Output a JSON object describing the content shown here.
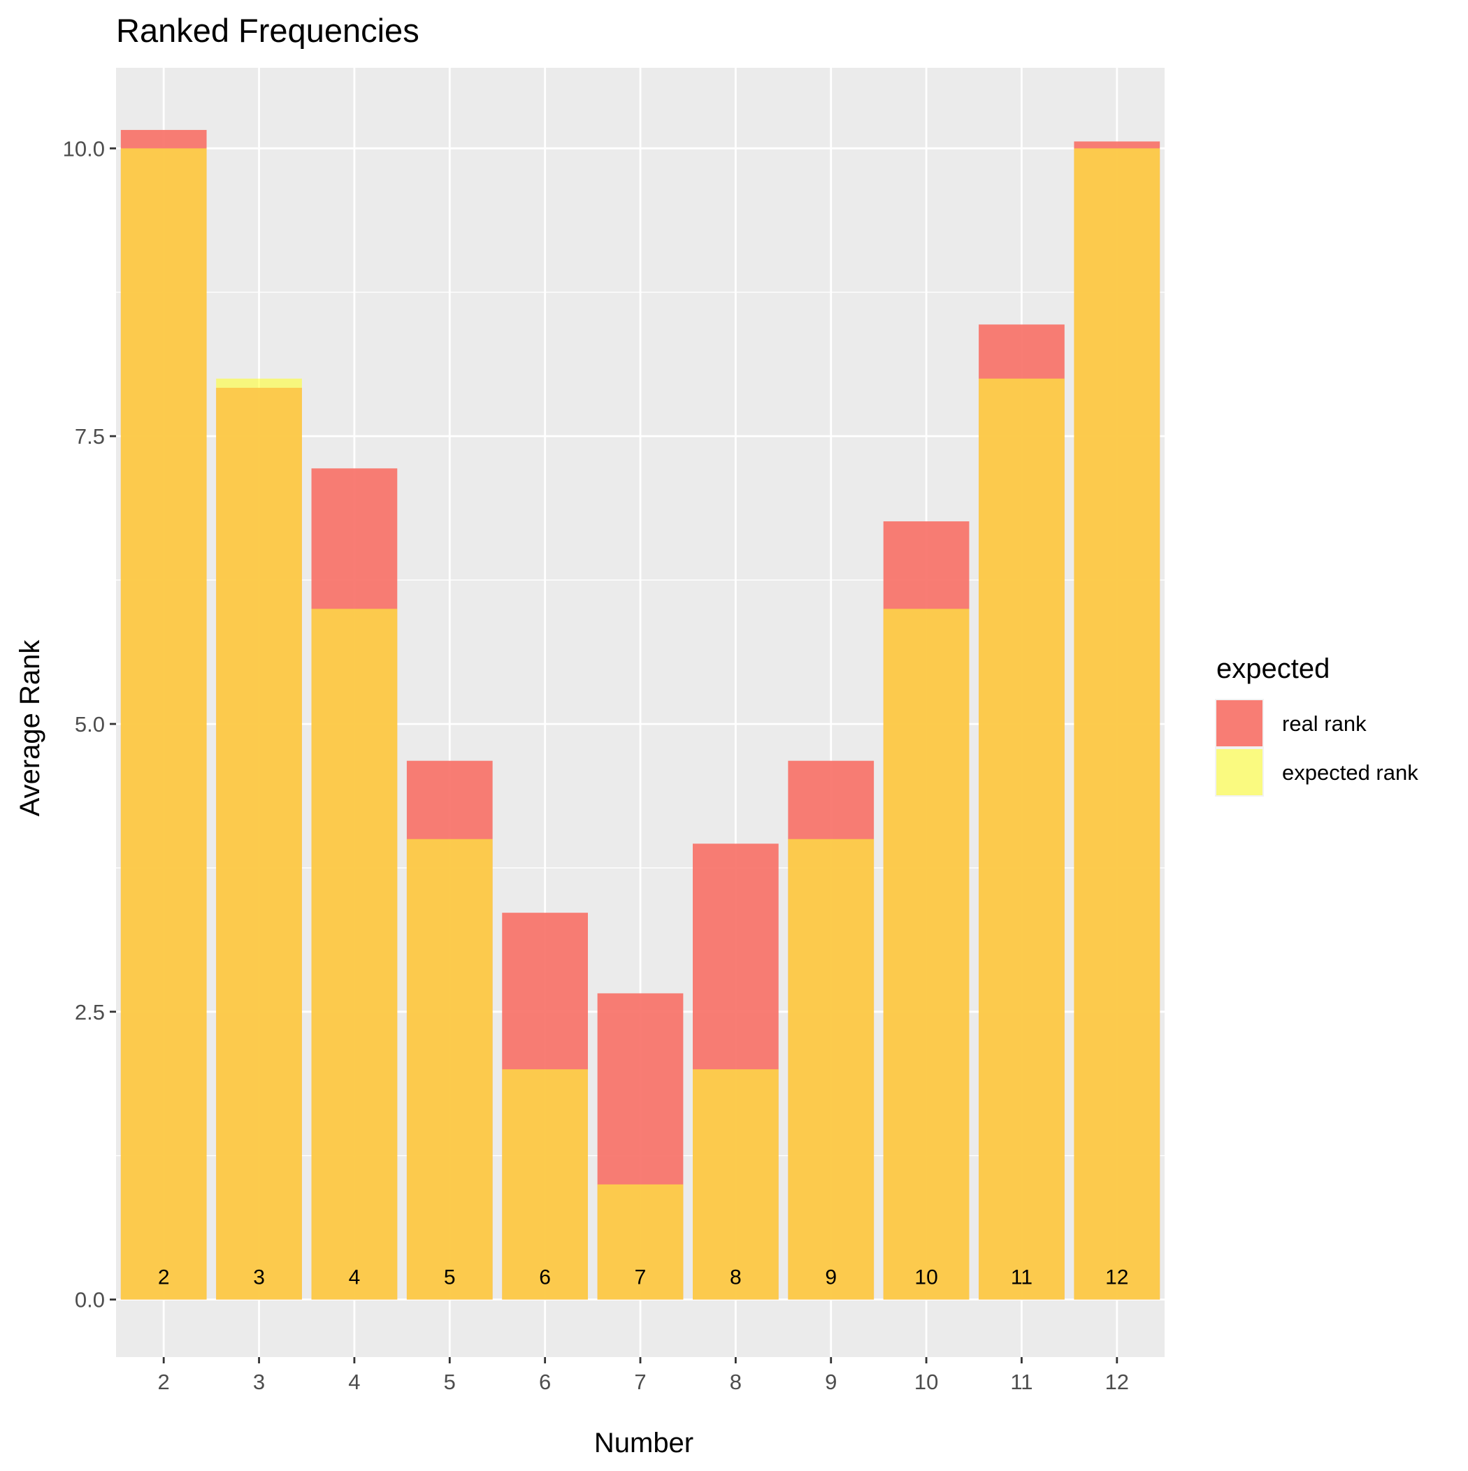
{
  "chart_data": {
    "type": "bar",
    "title": "Ranked Frequencies",
    "xlabel": "Number",
    "ylabel": "Average Rank",
    "categories": [
      "2",
      "3",
      "4",
      "5",
      "6",
      "7",
      "8",
      "9",
      "10",
      "11",
      "12"
    ],
    "series": [
      {
        "name": "real rank",
        "color": "#F8766D",
        "opacity": 0.95,
        "values": [
          10.16,
          7.92,
          7.22,
          4.68,
          3.36,
          2.66,
          3.96,
          4.68,
          6.76,
          8.47,
          10.06
        ]
      },
      {
        "name": "expected rank",
        "color": "#FFFF33",
        "opacity": 0.6,
        "values": [
          10,
          8,
          6,
          4,
          2,
          1,
          2,
          4,
          6,
          8,
          10
        ]
      }
    ],
    "bar_labels": [
      "2",
      "3",
      "4",
      "5",
      "6",
      "7",
      "8",
      "9",
      "10",
      "11",
      "12"
    ],
    "ylim": [
      -0.5,
      10.7
    ],
    "yticks": [
      0,
      2.5,
      5,
      7.5,
      10
    ],
    "ytick_labels": [
      "0.0",
      "2.5",
      "5.0",
      "7.5",
      "10.0"
    ],
    "grid": true,
    "panel_background": "#EBEBEB",
    "legend": {
      "title": "expected",
      "position": "right",
      "entries": [
        "real rank",
        "expected rank"
      ]
    }
  }
}
